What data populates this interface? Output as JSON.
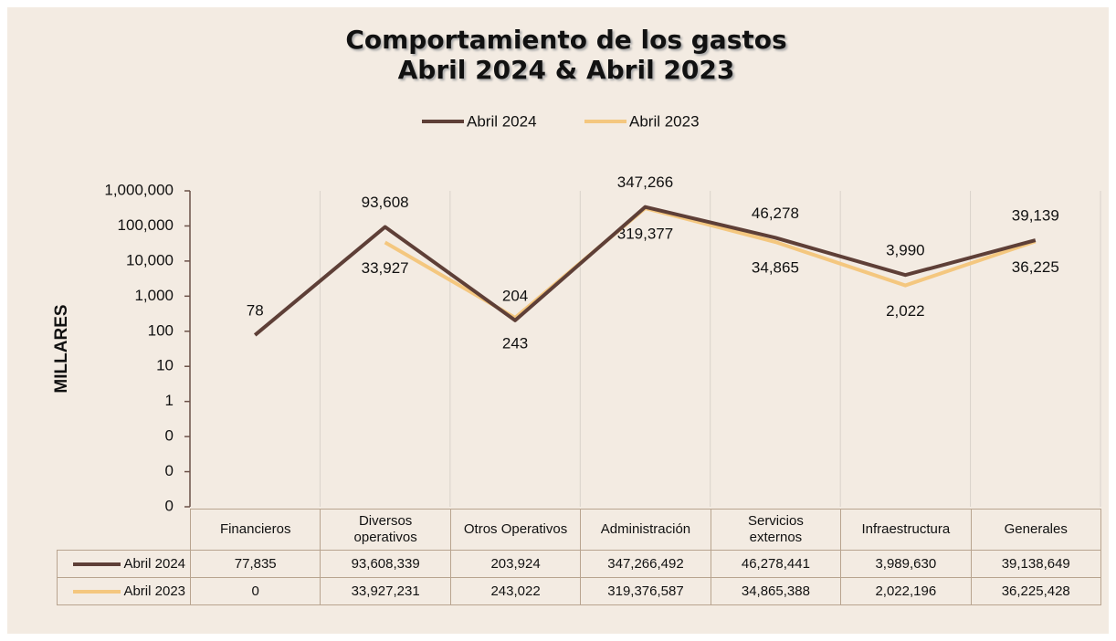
{
  "chart_data": {
    "type": "line",
    "title": "Comportamiento de los gastos",
    "subtitle": "Abril 2024 & Abril 2023",
    "y_axis_label": "MILLARES",
    "log_scale": true,
    "grid": true,
    "legend": "top",
    "categories": [
      "Financieros",
      "Diversos operativos",
      "Otros Operativos",
      "Administración",
      "Servicios externos",
      "Infraestructura",
      "Generales"
    ],
    "ylim": [
      0.001,
      1000000
    ],
    "yticks": [
      {
        "value": 0.001,
        "label": "0"
      },
      {
        "value": 0.01,
        "label": "0"
      },
      {
        "value": 0.1,
        "label": "0"
      },
      1,
      10,
      100,
      {
        "value": 1000,
        "label": "1,000"
      },
      {
        "value": 10000,
        "label": "10,000"
      },
      {
        "value": 100000,
        "label": "100,000"
      },
      {
        "value": 1000000,
        "label": "1,000,000"
      }
    ],
    "series": [
      {
        "name": "Abril 2024",
        "color": "#5e3f37",
        "values": [
          77.835,
          93608.339,
          203.924,
          347266.492,
          46278.441,
          3989.63,
          39138.649
        ],
        "value_labels": [
          "78",
          "93,608",
          "204",
          "347,266",
          "46,278",
          "3,990",
          "39,139"
        ]
      },
      {
        "name": "Abril 2023",
        "color": "#f4c77f",
        "values": [
          0,
          33927.231,
          243.022,
          319376.587,
          34865.388,
          2022.196,
          36225.428
        ],
        "value_labels": [
          null,
          "33,927",
          "243",
          "319,377",
          "34,865",
          "2,022",
          "36,225"
        ]
      }
    ],
    "data_table": {
      "rows": [
        [
          "77,835",
          "93,608,339",
          "203,924",
          "347,266,492",
          "46,278,441",
          "3,989,630",
          "39,138,649"
        ],
        [
          "0",
          "33,927,231",
          "243,022",
          "319,376,587",
          "34,865,388",
          "2,022,196",
          "36,225,428"
        ]
      ]
    }
  }
}
